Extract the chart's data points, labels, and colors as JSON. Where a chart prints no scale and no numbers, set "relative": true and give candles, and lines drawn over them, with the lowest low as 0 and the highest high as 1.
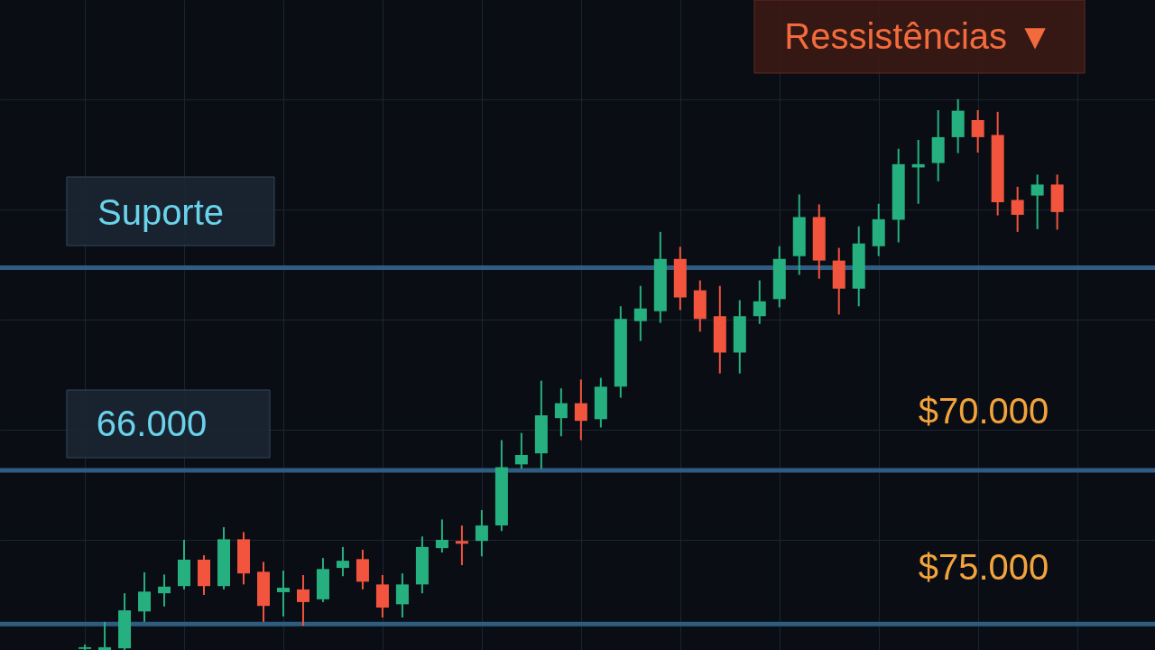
{
  "chart_data": {
    "type": "candlestick",
    "relative": true,
    "grid": true,
    "categories": [
      null,
      null,
      null,
      null,
      null,
      null,
      null,
      null,
      null,
      null,
      null,
      null,
      null,
      null,
      null,
      null,
      null,
      null,
      null,
      null,
      null,
      null,
      null,
      null,
      null,
      null,
      null,
      null,
      null,
      null,
      null,
      null,
      null,
      null,
      null,
      null,
      null,
      null,
      null,
      null,
      null,
      null,
      null,
      null,
      null,
      null,
      null,
      null,
      null,
      null
    ],
    "ohlc": [
      [
        0.002,
        0.01,
        0,
        0.005
      ],
      [
        0,
        0.051,
        0,
        0.005
      ],
      [
        0.003,
        0.103,
        0,
        0.072
      ],
      [
        0.07,
        0.141,
        0.051,
        0.106
      ],
      [
        0.103,
        0.137,
        0.079,
        0.115
      ],
      [
        0.116,
        0.2,
        0.11,
        0.164
      ],
      [
        0.164,
        0.172,
        0.1,
        0.116
      ],
      [
        0.116,
        0.223,
        0.11,
        0.201
      ],
      [
        0.201,
        0.214,
        0.119,
        0.139
      ],
      [
        0.142,
        0.16,
        0.051,
        0.08
      ],
      [
        0.105,
        0.144,
        0.061,
        0.113
      ],
      [
        0.11,
        0.136,
        0.044,
        0.087
      ],
      [
        0.092,
        0.167,
        0.087,
        0.147
      ],
      [
        0.149,
        0.187,
        0.134,
        0.162
      ],
      [
        0.165,
        0.182,
        0.11,
        0.124
      ],
      [
        0.119,
        0.136,
        0.059,
        0.077
      ],
      [
        0.083,
        0.139,
        0.059,
        0.119
      ],
      [
        0.119,
        0.206,
        0.103,
        0.187
      ],
      [
        0.185,
        0.237,
        0.177,
        0.2
      ],
      [
        0.198,
        0.226,
        0.154,
        0.193
      ],
      [
        0.198,
        0.254,
        0.17,
        0.226
      ],
      [
        0.226,
        0.381,
        0.216,
        0.332
      ],
      [
        0.337,
        0.394,
        0.329,
        0.354
      ],
      [
        0.357,
        0.489,
        0.329,
        0.426
      ],
      [
        0.421,
        0.475,
        0.388,
        0.448
      ],
      [
        0.448,
        0.491,
        0.381,
        0.416
      ],
      [
        0.419,
        0.494,
        0.404,
        0.478
      ],
      [
        0.478,
        0.624,
        0.458,
        0.601
      ],
      [
        0.597,
        0.661,
        0.561,
        0.62
      ],
      [
        0.615,
        0.759,
        0.594,
        0.71
      ],
      [
        0.71,
        0.732,
        0.617,
        0.64
      ],
      [
        0.653,
        0.671,
        0.578,
        0.601
      ],
      [
        0.606,
        0.661,
        0.502,
        0.54
      ],
      [
        0.54,
        0.635,
        0.502,
        0.606
      ],
      [
        0.606,
        0.671,
        0.592,
        0.633
      ],
      [
        0.637,
        0.733,
        0.622,
        0.71
      ],
      [
        0.715,
        0.827,
        0.681,
        0.786
      ],
      [
        0.786,
        0.809,
        0.674,
        0.707
      ],
      [
        0.707,
        0.73,
        0.609,
        0.656
      ],
      [
        0.656,
        0.769,
        0.624,
        0.738
      ],
      [
        0.733,
        0.81,
        0.715,
        0.782
      ],
      [
        0.781,
        0.91,
        0.74,
        0.882
      ],
      [
        0.876,
        0.926,
        0.81,
        0.882
      ],
      [
        0.884,
        0.98,
        0.851,
        0.931
      ],
      [
        0.931,
        1,
        0.902,
        0.979
      ],
      [
        0.962,
        0.98,
        0.903,
        0.931
      ],
      [
        0.935,
        0.977,
        0.789,
        0.813
      ],
      [
        0.817,
        0.841,
        0.759,
        0.79
      ],
      [
        0.825,
        0.863,
        0.764,
        0.845
      ],
      [
        0.845,
        0.863,
        0.763,
        0.795
      ]
    ],
    "colors": [
      "#26b07f",
      "#26b07f",
      "#26b07f",
      "#26b07f",
      "#26b07f",
      "#26b07f",
      "#f2543d",
      "#26b07f",
      "#f2543d",
      "#f2543d",
      "#26b07f",
      "#f2543d",
      "#26b07f",
      "#26b07f",
      "#f2543d",
      "#f2543d",
      "#26b07f",
      "#26b07f",
      "#26b07f",
      "#f2543d",
      "#26b07f",
      "#26b07f",
      "#26b07f",
      "#26b07f",
      "#26b07f",
      "#f2543d",
      "#26b07f",
      "#26b07f",
      "#26b07f",
      "#26b07f",
      "#f2543d",
      "#f2543d",
      "#f2543d",
      "#26b07f",
      "#26b07f",
      "#26b07f",
      "#26b07f",
      "#f2543d",
      "#f2543d",
      "#26b07f",
      "#26b07f",
      "#26b07f",
      "#26b07f",
      "#26b07f",
      "#26b07f",
      "#f2543d",
      "#f2543d",
      "#f2543d",
      "#26b07f",
      "#f2543d"
    ],
    "ref_lines": [
      {
        "axis": "y",
        "value": 0.694,
        "color": "#2f5d82"
      },
      {
        "axis": "y",
        "value": 0.326,
        "color": "#2f5d82"
      },
      {
        "axis": "y",
        "value": 0.047,
        "color": "#2f5d82"
      }
    ],
    "annotations": [
      "Ressistências ▼",
      "Suporte",
      "66.000",
      "$70.000",
      "$75.000"
    ]
  }
}
